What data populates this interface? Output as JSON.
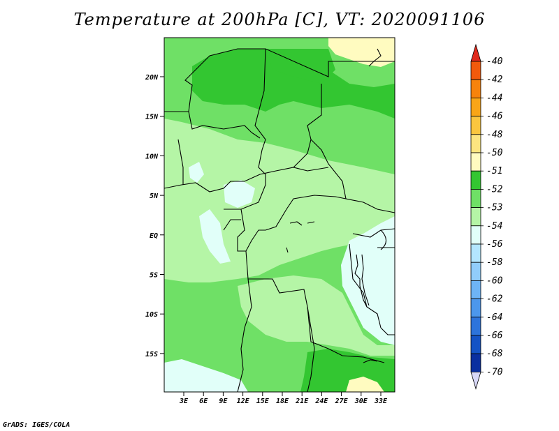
{
  "title": "Temperature at 200hPa [C], VT: 2020091106",
  "credit": "GrADS: IGES/COLA",
  "lat_ticks": [
    "20N",
    "15N",
    "10N",
    "5N",
    "EQ",
    "5S",
    "10S",
    "15S"
  ],
  "lon_ticks": [
    "3E",
    "6E",
    "9E",
    "12E",
    "15E",
    "18E",
    "21E",
    "24E",
    "27E",
    "30E",
    "33E"
  ],
  "legend": {
    "levels": [
      "-40",
      "-42",
      "-44",
      "-46",
      "-48",
      "-50",
      "-51",
      "-52",
      "-53",
      "-54",
      "-56",
      "-58",
      "-60",
      "-62",
      "-64",
      "-66",
      "-68",
      "-70"
    ],
    "colors": [
      "#e0291c",
      "#f25a0c",
      "#f7830c",
      "#f9a517",
      "#fbc63f",
      "#fde580",
      "#fffbc0",
      "#33c631",
      "#6fe066",
      "#b5f5a6",
      "#e1fff9",
      "#b3e6ff",
      "#91cdfb",
      "#6eb4f6",
      "#4c97ec",
      "#2d74db",
      "#1453c5",
      "#0a2fa0",
      "#031377"
    ],
    "top_arrow_color": "#e0291c",
    "bottom_arrow_color": "#d8d8f8"
  },
  "map_colors": {
    "band_minus51_52": "#33c631",
    "band_minus52_53": "#6fe066",
    "band_minus53_54": "#b5f5a6",
    "band_minus54_56": "#e1fff9",
    "band_minus50_51": "#fffbc0"
  }
}
